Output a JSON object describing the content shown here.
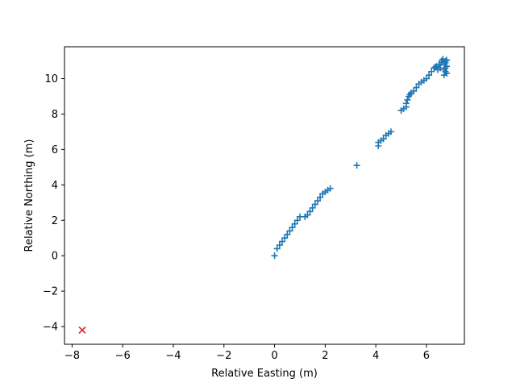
{
  "chart_data": {
    "type": "scatter",
    "title": "",
    "xlabel": "Relative Easting (m)",
    "ylabel": "Relative Northing (m)",
    "xlim": [
      -8.3,
      7.5
    ],
    "ylim": [
      -5.0,
      11.8
    ],
    "x_ticks": [
      -8,
      -6,
      -4,
      -2,
      0,
      2,
      4,
      6
    ],
    "y_ticks": [
      -4,
      -2,
      0,
      2,
      4,
      6,
      8,
      10
    ],
    "x_tick_labels": [
      "−8",
      "−6",
      "−4",
      "−2",
      "0",
      "2",
      "4",
      "6"
    ],
    "y_tick_labels": [
      "−4",
      "−2",
      "0",
      "2",
      "4",
      "6",
      "8",
      "10"
    ],
    "grid": false,
    "legend": "none",
    "series": [
      {
        "marker": "+",
        "color": "#1f77b4",
        "points": [
          [
            0.0,
            0.0
          ],
          [
            0.1,
            0.4
          ],
          [
            0.2,
            0.6
          ],
          [
            0.3,
            0.8
          ],
          [
            0.4,
            1.0
          ],
          [
            0.5,
            1.2
          ],
          [
            0.6,
            1.4
          ],
          [
            0.7,
            1.6
          ],
          [
            0.8,
            1.8
          ],
          [
            0.9,
            2.0
          ],
          [
            1.0,
            2.2
          ],
          [
            1.2,
            2.2
          ],
          [
            1.3,
            2.3
          ],
          [
            1.4,
            2.5
          ],
          [
            1.5,
            2.7
          ],
          [
            1.6,
            2.9
          ],
          [
            1.7,
            3.1
          ],
          [
            1.8,
            3.3
          ],
          [
            1.9,
            3.5
          ],
          [
            2.0,
            3.6
          ],
          [
            2.1,
            3.7
          ],
          [
            2.2,
            3.8
          ],
          [
            3.25,
            5.1
          ],
          [
            4.1,
            6.2
          ],
          [
            4.1,
            6.4
          ],
          [
            4.2,
            6.5
          ],
          [
            4.3,
            6.6
          ],
          [
            4.4,
            6.8
          ],
          [
            4.5,
            6.9
          ],
          [
            4.6,
            7.0
          ],
          [
            5.0,
            8.2
          ],
          [
            5.1,
            8.3
          ],
          [
            5.2,
            8.4
          ],
          [
            5.2,
            8.6
          ],
          [
            5.25,
            8.8
          ],
          [
            5.3,
            9.0
          ],
          [
            5.35,
            9.1
          ],
          [
            5.4,
            9.2
          ],
          [
            5.5,
            9.3
          ],
          [
            5.6,
            9.5
          ],
          [
            5.7,
            9.7
          ],
          [
            5.8,
            9.8
          ],
          [
            5.9,
            9.9
          ],
          [
            6.0,
            10.0
          ],
          [
            6.1,
            10.2
          ],
          [
            6.2,
            10.4
          ],
          [
            6.3,
            10.6
          ],
          [
            6.4,
            10.7
          ],
          [
            6.5,
            10.8
          ],
          [
            6.6,
            10.9
          ],
          [
            6.6,
            11.0
          ],
          [
            6.65,
            11.1
          ],
          [
            6.7,
            10.8
          ],
          [
            6.7,
            10.5
          ],
          [
            6.7,
            10.2
          ],
          [
            6.75,
            10.4
          ],
          [
            6.75,
            10.6
          ],
          [
            6.75,
            10.9
          ],
          [
            6.75,
            11.0
          ],
          [
            6.8,
            10.7
          ],
          [
            6.8,
            10.3
          ],
          [
            6.8,
            11.05
          ],
          [
            6.55,
            10.6
          ],
          [
            6.45,
            10.5
          ],
          [
            6.35,
            10.65
          ]
        ]
      },
      {
        "marker": "x",
        "color": "#d62728",
        "points": [
          [
            -7.6,
            -4.2
          ]
        ]
      }
    ]
  }
}
